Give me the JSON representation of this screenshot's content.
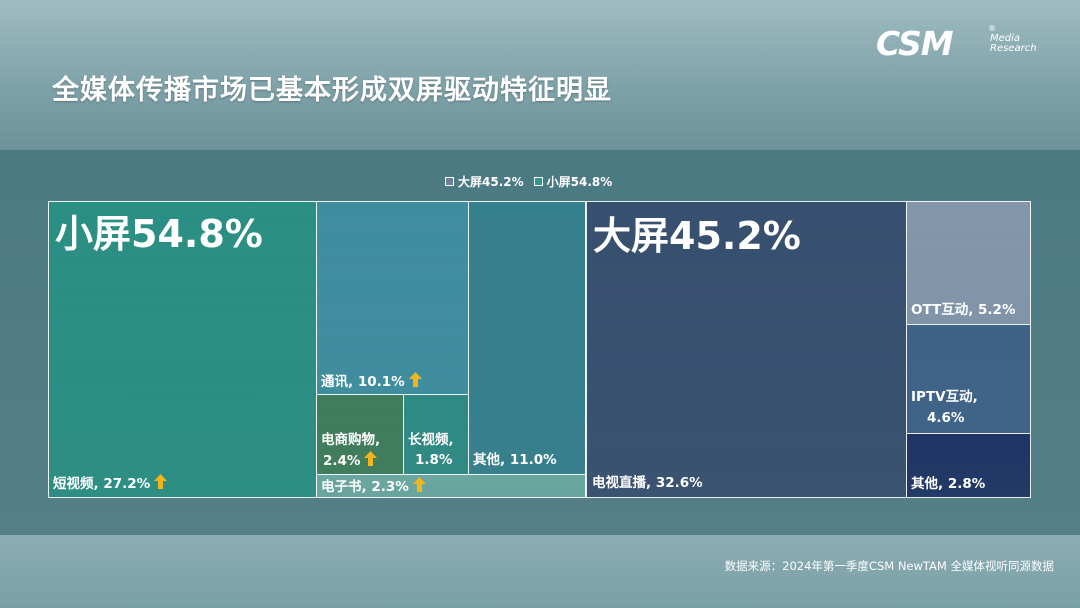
{
  "title": "全媒体传播市场已基本形成双屏驱动特征明显",
  "logo": {
    "main": "CSM",
    "sub1": "Media",
    "sub2": "Research",
    "reg": "®"
  },
  "legend": [
    {
      "label": "大屏45.2%",
      "color": "#6f7f96"
    },
    {
      "label": "小屏54.8%",
      "color": "#2a9a8c"
    }
  ],
  "headlines": {
    "small": "小屏54.8%",
    "big": "大屏45.2%"
  },
  "source": "数据来源：2024年第一季度CSM NewTAM 全媒体视听同源数据",
  "chart_data": {
    "type": "treemap",
    "title": "全媒体传播市场已基本形成双屏驱动特征明显",
    "groups": [
      {
        "name": "小屏",
        "value": 54.8,
        "items": [
          {
            "name": "短视频",
            "value": 27.2,
            "label": "短视频, 27.2%",
            "trend": "up",
            "color": "#2b8f83"
          },
          {
            "name": "通讯",
            "value": 10.1,
            "label": "通讯, 10.1%",
            "trend": "up",
            "color": "#3f8ea0"
          },
          {
            "name": "电商购物",
            "value": 2.4,
            "label1": "电商购物,",
            "label2": "2.4%",
            "trend": "up",
            "color": "#3f7d5c"
          },
          {
            "name": "长视频",
            "value": 1.8,
            "label1": "长视频,",
            "label2": "1.8%",
            "trend": "none",
            "color": "#2f8a84"
          },
          {
            "name": "电子书",
            "value": 2.3,
            "label": "电子书, 2.3%",
            "trend": "up",
            "color": "#6aa79f"
          },
          {
            "name": "其他",
            "value": 11.0,
            "label": "其他, 11.0%",
            "trend": "none",
            "color": "#35808c"
          }
        ]
      },
      {
        "name": "大屏",
        "value": 45.2,
        "items": [
          {
            "name": "电视直播",
            "value": 32.6,
            "label": "电视直播, 32.6%",
            "trend": "none",
            "color": "#38506f"
          },
          {
            "name": "OTT互动",
            "value": 5.2,
            "label": "OTT互动, 5.2%",
            "trend": "none",
            "color": "#8496ab"
          },
          {
            "name": "IPTV互动",
            "value": 4.6,
            "label1": "IPTV互动,",
            "label2": "4.6%",
            "trend": "none",
            "color": "#3f6288"
          },
          {
            "name": "其他",
            "value": 2.8,
            "label": "其他, 2.8%",
            "trend": "none",
            "color": "#1f3565"
          }
        ]
      }
    ]
  }
}
